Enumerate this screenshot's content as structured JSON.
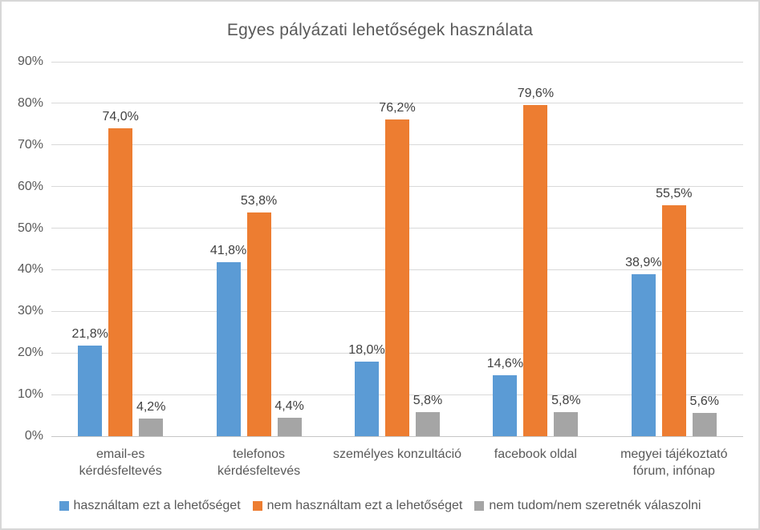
{
  "chart_data": {
    "type": "bar",
    "title": "Egyes pályázati lehetőségek használata",
    "categories": [
      "email-es kérdésfeltevés",
      "telefonos kérdésfeltevés",
      "személyes konzultáció",
      "facebook oldal",
      "megyei tájékoztató fórum, infónap"
    ],
    "categories_display": [
      "email-es\nkérdésfeltevés",
      "telefonos\nkérdésfeltevés",
      "személyes konzultáció",
      "facebook oldal",
      "megyei tájékoztató\nfórum, infónap"
    ],
    "series": [
      {
        "name": "használtam ezt a lehetőséget",
        "color": "#5B9BD5",
        "values": [
          21.8,
          41.8,
          18.0,
          14.6,
          38.9
        ],
        "labels": [
          "21,8%",
          "41,8%",
          "18,0%",
          "14,6%",
          "38,9%"
        ]
      },
      {
        "name": "nem használtam ezt a lehetőséget",
        "color": "#ED7D31",
        "values": [
          74.0,
          53.8,
          76.2,
          79.6,
          55.5
        ],
        "labels": [
          "74,0%",
          "53,8%",
          "76,2%",
          "79,6%",
          "55,5%"
        ]
      },
      {
        "name": "nem tudom/nem szeretnék válaszolni",
        "color": "#A5A5A5",
        "values": [
          4.2,
          4.4,
          5.8,
          5.8,
          5.6
        ],
        "labels": [
          "4,2%",
          "4,4%",
          "5,8%",
          "5,8%",
          "5,6%"
        ]
      }
    ],
    "ylim": [
      0,
      90
    ],
    "ytick_labels": [
      "0%",
      "10%",
      "20%",
      "30%",
      "40%",
      "50%",
      "60%",
      "70%",
      "80%",
      "90%"
    ],
    "grid": true,
    "legend_position": "bottom",
    "colors": {
      "title_text": "#595959",
      "axis_text": "#595959",
      "data_label_text": "#404040",
      "gridline": "#D9D9D9"
    }
  }
}
